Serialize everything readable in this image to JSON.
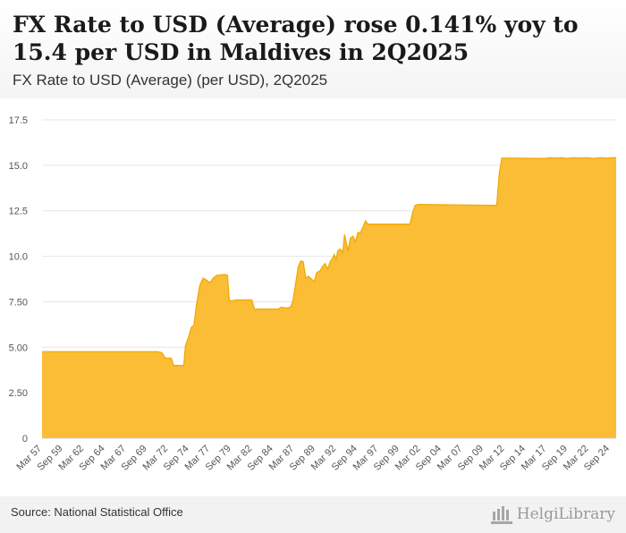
{
  "header": {
    "title": "FX Rate to USD (Average) rose 0.141% yoy to 15.4 per USD in Maldives in 2Q2025",
    "subtitle": "FX Rate to USD (Average) (per USD), 2Q2025"
  },
  "footer": {
    "source": "Source: National Statistical Office",
    "logo_text": "HelgiLibrary"
  },
  "colors": {
    "area_fill": "#fbbc36",
    "area_line": "#f0a800",
    "grid": "#e6e6e6",
    "axis_text": "#555555"
  },
  "chart_data": {
    "type": "area",
    "title": "FX Rate to USD (Average) (per USD), 2Q2025",
    "xlabel": "",
    "ylabel": "",
    "ylim": [
      0,
      17.5
    ],
    "yticks": [
      0,
      2.5,
      5.0,
      7.5,
      10.0,
      12.5,
      15.0,
      17.5
    ],
    "ytick_labels": [
      "0",
      "2.50",
      "5.00",
      "7.50",
      "10.0",
      "12.5",
      "15.0",
      "17.5"
    ],
    "xlim": [
      1957.25,
      2025.5
    ],
    "xticks": [
      {
        "label": "Mar 57",
        "x": 1957.25
      },
      {
        "label": "Sep 59",
        "x": 1959.75
      },
      {
        "label": "Mar 62",
        "x": 1962.25
      },
      {
        "label": "Sep 64",
        "x": 1964.75
      },
      {
        "label": "Mar 67",
        "x": 1967.25
      },
      {
        "label": "Sep 69",
        "x": 1969.75
      },
      {
        "label": "Mar 72",
        "x": 1972.25
      },
      {
        "label": "Sep 74",
        "x": 1974.75
      },
      {
        "label": "Mar 77",
        "x": 1977.25
      },
      {
        "label": "Sep 79",
        "x": 1979.75
      },
      {
        "label": "Mar 82",
        "x": 1982.25
      },
      {
        "label": "Sep 84",
        "x": 1984.75
      },
      {
        "label": "Mar 87",
        "x": 1987.25
      },
      {
        "label": "Sep 89",
        "x": 1989.75
      },
      {
        "label": "Mar 92",
        "x": 1992.25
      },
      {
        "label": "Sep 94",
        "x": 1994.75
      },
      {
        "label": "Mar 97",
        "x": 1997.25
      },
      {
        "label": "Sep 99",
        "x": 1999.75
      },
      {
        "label": "Mar 02",
        "x": 2002.25
      },
      {
        "label": "Sep 04",
        "x": 2004.75
      },
      {
        "label": "Mar 07",
        "x": 2007.25
      },
      {
        "label": "Sep 09",
        "x": 2009.75
      },
      {
        "label": "Mar 12",
        "x": 2012.25
      },
      {
        "label": "Sep 14",
        "x": 2014.75
      },
      {
        "label": "Mar 17",
        "x": 2017.25
      },
      {
        "label": "Sep 19",
        "x": 2019.75
      },
      {
        "label": "Mar 22",
        "x": 2022.25
      },
      {
        "label": "Sep 24",
        "x": 2024.75
      }
    ],
    "series": [
      {
        "name": "FX Rate to USD (Average)",
        "points": [
          [
            1957.25,
            4.76
          ],
          [
            1971.0,
            4.76
          ],
          [
            1971.5,
            4.7
          ],
          [
            1971.9,
            4.4
          ],
          [
            1972.6,
            4.4
          ],
          [
            1972.9,
            4.0
          ],
          [
            1974.1,
            4.0
          ],
          [
            1974.3,
            5.1
          ],
          [
            1974.7,
            5.6
          ],
          [
            1975.0,
            6.1
          ],
          [
            1975.3,
            6.2
          ],
          [
            1975.6,
            7.3
          ],
          [
            1976.0,
            8.4
          ],
          [
            1976.4,
            8.8
          ],
          [
            1976.8,
            8.7
          ],
          [
            1977.2,
            8.55
          ],
          [
            1977.6,
            8.8
          ],
          [
            1978.0,
            8.95
          ],
          [
            1978.5,
            8.98
          ],
          [
            1979.0,
            9.0
          ],
          [
            1979.3,
            8.95
          ],
          [
            1979.5,
            7.6
          ],
          [
            1979.8,
            7.55
          ],
          [
            1980.3,
            7.6
          ],
          [
            1982.2,
            7.6
          ],
          [
            1982.5,
            7.1
          ],
          [
            1985.3,
            7.1
          ],
          [
            1985.7,
            7.2
          ],
          [
            1986.3,
            7.15
          ],
          [
            1986.8,
            7.2
          ],
          [
            1987.1,
            7.6
          ],
          [
            1987.4,
            8.5
          ],
          [
            1987.7,
            9.4
          ],
          [
            1988.0,
            9.75
          ],
          [
            1988.3,
            9.7
          ],
          [
            1988.6,
            8.8
          ],
          [
            1988.9,
            8.9
          ],
          [
            1989.3,
            8.75
          ],
          [
            1989.6,
            8.6
          ],
          [
            1989.9,
            9.1
          ],
          [
            1990.3,
            9.2
          ],
          [
            1990.6,
            9.45
          ],
          [
            1990.9,
            9.6
          ],
          [
            1991.2,
            9.3
          ],
          [
            1991.5,
            9.7
          ],
          [
            1991.8,
            9.9
          ],
          [
            1992.0,
            10.1
          ],
          [
            1992.2,
            9.8
          ],
          [
            1992.4,
            10.3
          ],
          [
            1992.7,
            10.4
          ],
          [
            1993.0,
            10.2
          ],
          [
            1993.2,
            11.2
          ],
          [
            1993.4,
            10.8
          ],
          [
            1993.6,
            10.3
          ],
          [
            1993.9,
            11.0
          ],
          [
            1994.2,
            11.1
          ],
          [
            1994.5,
            10.8
          ],
          [
            1994.8,
            11.3
          ],
          [
            1995.1,
            11.3
          ],
          [
            1995.4,
            11.6
          ],
          [
            1995.7,
            11.95
          ],
          [
            1996.0,
            11.77
          ],
          [
            2001.0,
            11.77
          ],
          [
            2001.3,
            12.4
          ],
          [
            2001.6,
            12.8
          ],
          [
            2002.0,
            12.85
          ],
          [
            2011.3,
            12.8
          ],
          [
            2011.6,
            14.5
          ],
          [
            2011.9,
            15.4
          ],
          [
            2017.0,
            15.38
          ],
          [
            2017.6,
            15.42
          ],
          [
            2018.3,
            15.4
          ],
          [
            2019.0,
            15.42
          ],
          [
            2019.7,
            15.38
          ],
          [
            2020.4,
            15.42
          ],
          [
            2021.2,
            15.4
          ],
          [
            2022.0,
            15.42
          ],
          [
            2022.8,
            15.38
          ],
          [
            2023.6,
            15.42
          ],
          [
            2024.4,
            15.4
          ],
          [
            2025.0,
            15.42
          ],
          [
            2025.5,
            15.42
          ]
        ]
      }
    ]
  }
}
